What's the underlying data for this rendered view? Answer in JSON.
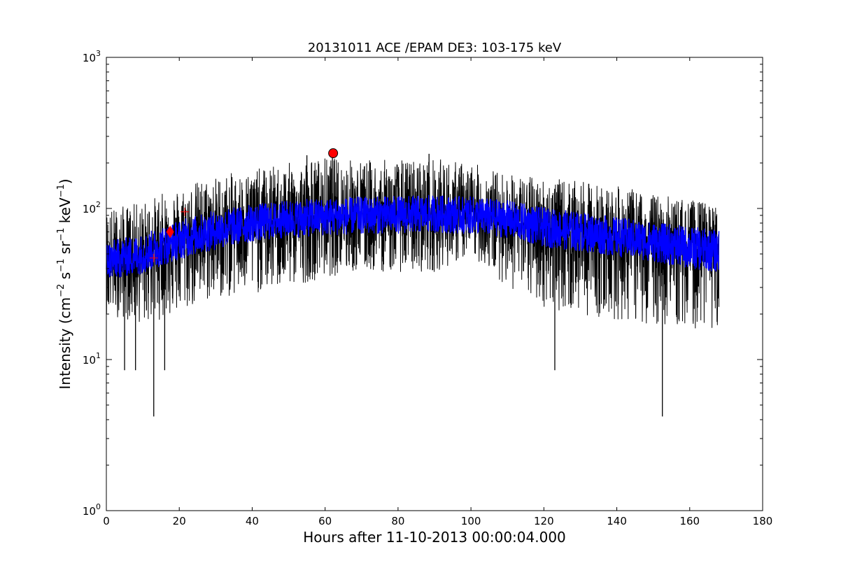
{
  "chart_data": {
    "type": "line",
    "title": "20131011 ACE /EPAM DE3: 103-175 keV",
    "xlabel": "Hours after 11-10-2013 00:00:04.000",
    "ylabel": "Intensity (cm",
    "ylabel_parts": [
      "Intensity (cm",
      "−2",
      " s",
      "−1",
      " sr",
      "−1",
      " keV",
      "−1",
      ")"
    ],
    "xlim": [
      0,
      180
    ],
    "ylim": [
      1,
      1000
    ],
    "yscale": "log",
    "grid": false,
    "x_ticks": [
      "0",
      "20",
      "40",
      "60",
      "80",
      "100",
      "120",
      "140",
      "160",
      "180"
    ],
    "y_ticks": [
      {
        "base": "10",
        "exp": "0",
        "value": 1
      },
      {
        "base": "10",
        "exp": "1",
        "value": 10
      },
      {
        "base": "10",
        "exp": "2",
        "value": 100
      },
      {
        "base": "10",
        "exp": "3",
        "value": 1000
      }
    ],
    "series": [
      {
        "style": "raw",
        "color": "#000000",
        "x": [
          0,
          10,
          20,
          30,
          40,
          50,
          60,
          70,
          80,
          90,
          100,
          110,
          120,
          130,
          140,
          150,
          160,
          168
        ],
        "center": [
          45,
          50,
          62,
          72,
          80,
          85,
          88,
          90,
          91,
          92,
          90,
          85,
          75,
          70,
          65,
          60,
          55,
          52
        ],
        "low": [
          20,
          17,
          20,
          25,
          27,
          30,
          35,
          38,
          38,
          38,
          48,
          30,
          22,
          20,
          18,
          17,
          16,
          16
        ],
        "high": [
          100,
          110,
          140,
          165,
          180,
          200,
          220,
          210,
          210,
          215,
          200,
          170,
          160,
          150,
          140,
          125,
          115,
          105
        ],
        "min_spikes": [
          [
            13,
            4.2
          ],
          [
            152.5,
            4.2
          ],
          [
            123,
            8.5
          ],
          [
            16,
            8.5
          ],
          [
            5,
            8.5
          ],
          [
            8,
            8.5
          ]
        ],
        "max_spikes": [
          [
            62,
            235
          ],
          [
            88.5,
            230
          ],
          [
            55,
            225
          ]
        ]
      },
      {
        "style": "smoothed",
        "color": "#0000ff",
        "x": [
          0,
          10,
          20,
          30,
          40,
          50,
          60,
          70,
          80,
          90,
          100,
          110,
          120,
          130,
          140,
          150,
          160,
          168
        ],
        "center": [
          45,
          50,
          62,
          72,
          80,
          85,
          88,
          90,
          91,
          92,
          90,
          85,
          75,
          70,
          65,
          60,
          55,
          52
        ],
        "spread": [
          1.35,
          1.35,
          1.35,
          1.35,
          1.33,
          1.33,
          1.33,
          1.33,
          1.33,
          1.33,
          1.33,
          1.33,
          1.35,
          1.35,
          1.35,
          1.35,
          1.38,
          1.38
        ]
      }
    ],
    "markers": [
      {
        "shape": "plus",
        "color": "#ff0000",
        "x": 13,
        "y": 47
      },
      {
        "shape": "diamond",
        "color": "#ff0000",
        "x": 17.5,
        "y": 70
      },
      {
        "shape": "plus",
        "color": "#ff0000",
        "x": 21.5,
        "y": 95
      },
      {
        "shape": "circle",
        "color": "#ff0000",
        "x": 62.2,
        "y": 232
      }
    ]
  }
}
